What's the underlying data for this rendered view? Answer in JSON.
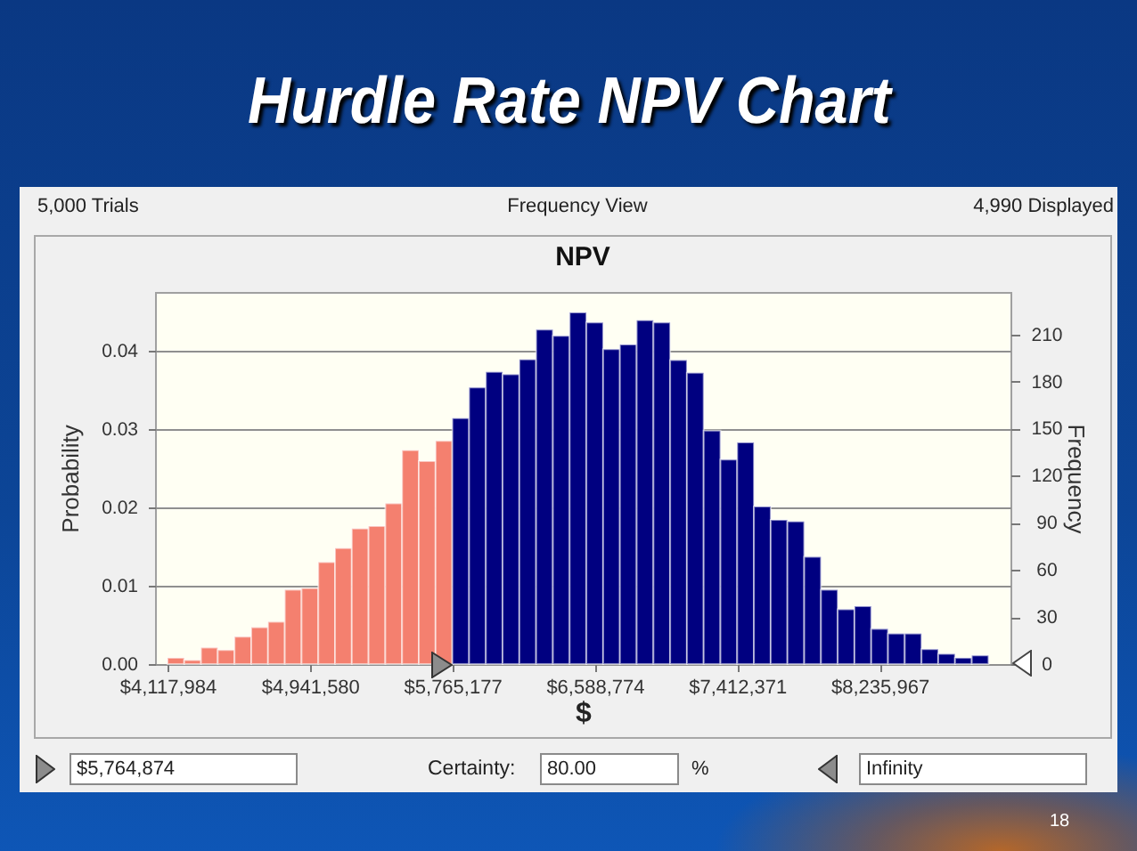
{
  "chart_data": {
    "type": "histogram",
    "title": "Hurdle Rate NPV Chart",
    "subtitle": "NPV",
    "xlabel": "$",
    "ylabel": "Probability",
    "y2label": "Frequency",
    "annotations": [
      "5,000 Trials",
      "Frequency View",
      "4,990 Displayed",
      "$5,764,874",
      "Certainty:",
      "80.00",
      "%",
      "Infinity",
      "18"
    ],
    "bins": [
      4118000,
      4214900,
      4311800,
      4408700,
      4505600,
      4602500,
      4699400,
      4796300,
      4893200,
      4990100,
      5087000,
      5183900,
      5280800,
      5377700,
      5474600,
      5571500,
      5668400,
      5765300,
      5862200,
      5959100,
      6056000,
      6152900,
      6249800,
      6346700,
      6443600,
      6540500,
      6637400,
      6734300,
      6831200,
      6928100,
      7025000,
      7121900,
      7218800,
      7315700,
      7412600,
      7509500,
      7606400,
      7703300,
      7800200,
      7897100,
      7994000,
      8090900,
      8187800,
      8284700,
      8381600,
      8478500,
      8575400,
      8672300,
      8769200,
      8866100
    ],
    "values": [
      0.0008,
      0.0005,
      0.0021,
      0.0018,
      0.0035,
      0.0047,
      0.0054,
      0.0095,
      0.0097,
      0.013,
      0.0148,
      0.0173,
      0.0176,
      0.0205,
      0.0273,
      0.0259,
      0.0285,
      0.0314,
      0.0353,
      0.0373,
      0.037,
      0.0389,
      0.0427,
      0.0419,
      0.0449,
      0.0436,
      0.0402,
      0.0408,
      0.0439,
      0.0436,
      0.0388,
      0.0372,
      0.0298,
      0.0261,
      0.0283,
      0.0201,
      0.0184,
      0.0182,
      0.0137,
      0.0095,
      0.007,
      0.0074,
      0.0045,
      0.0039,
      0.0039,
      0.0019,
      0.0013,
      0.0008,
      0.0011
    ],
    "colors": [
      "#f4806f",
      "#f4806f",
      "#f4806f",
      "#f4806f",
      "#f4806f",
      "#f4806f",
      "#f4806f",
      "#f4806f",
      "#f4806f",
      "#f4806f",
      "#f4806f",
      "#f4806f",
      "#f4806f",
      "#f4806f",
      "#f4806f",
      "#f4806f",
      "#f4806f",
      "#000080",
      "#000080",
      "#000080",
      "#000080",
      "#000080",
      "#000080",
      "#000080",
      "#000080",
      "#000080",
      "#000080",
      "#000080",
      "#000080",
      "#000080",
      "#000080",
      "#000080",
      "#000080",
      "#000080",
      "#000080",
      "#000080",
      "#000080",
      "#000080",
      "#000080",
      "#000080",
      "#000080",
      "#000080",
      "#000080",
      "#000080",
      "#000080",
      "#000080",
      "#000080",
      "#000080",
      "#000080"
    ],
    "xlim": [
      4046000,
      8993000
    ],
    "xticks": [
      {
        "value": 4117984,
        "label": "$4,117,984"
      },
      {
        "value": 4941580,
        "label": "$4,941,580"
      },
      {
        "value": 5765177,
        "label": "$5,765,177"
      },
      {
        "value": 6588774,
        "label": "$6,588,774"
      },
      {
        "value": 7412371,
        "label": "$7,412,371"
      },
      {
        "value": 8235967,
        "label": "$8,235,967"
      }
    ],
    "ylim": [
      0,
      0.0475
    ],
    "yticks": [
      {
        "value": 0,
        "label": "0.00"
      },
      0.01,
      0.02,
      0.03,
      0.04
    ],
    "y2lim": [
      0,
      237
    ],
    "y2ticks": [
      0,
      30,
      60,
      90,
      120,
      150,
      180,
      210
    ],
    "grid": "y"
  }
}
